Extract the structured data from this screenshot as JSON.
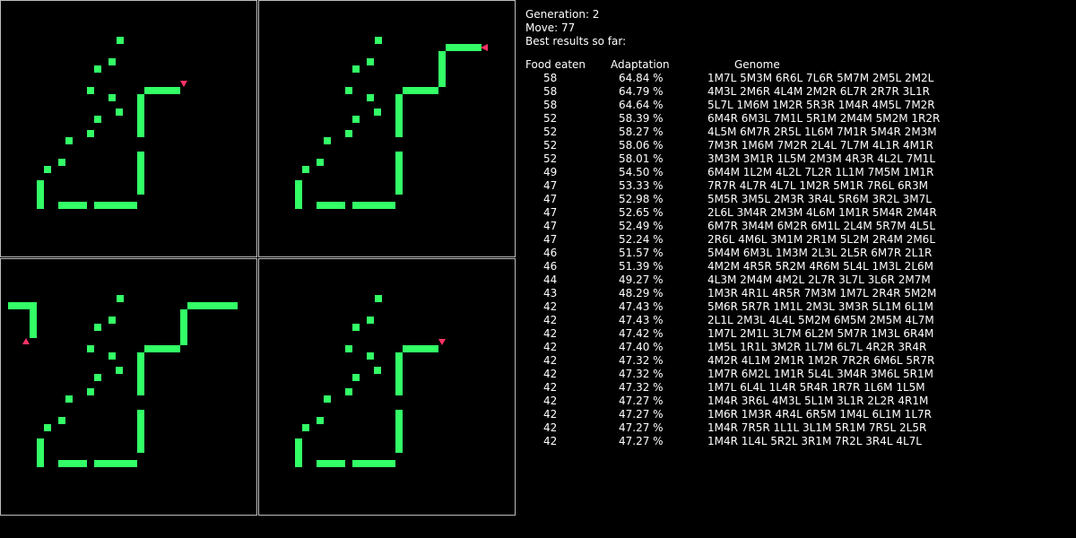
{
  "status": {
    "generation_label": "Generation: 2",
    "move_label": "Move: 77",
    "best_label": "Best results so far:"
  },
  "table": {
    "headers": [
      "Food eaten",
      "Adaptation",
      "Genome"
    ],
    "rows": [
      [
        "58",
        "64.84 %",
        "1M7L 5M3M 6R6L 7L6R 5M7M 2M5L 2M2L"
      ],
      [
        "58",
        "64.79 %",
        "4M3L 2M6R 4L4M 2M2R 6L7R 2R7R 3L1R"
      ],
      [
        "58",
        "64.64 %",
        "5L7L 1M6M 1M2R 5R3R 1M4R 4M5L 7M2R"
      ],
      [
        "52",
        "58.39 %",
        "6M4R 6M3L 7M1L 5R1M 2M4M 5M2M 1R2R"
      ],
      [
        "52",
        "58.27 %",
        "4L5M 6M7R 2R5L 1L6M 7M1R 5M4R 2M3M"
      ],
      [
        "52",
        "58.06 %",
        "7M3R 1M6M 7M2R 2L4L 7L7M 4L1R 4M1R"
      ],
      [
        "52",
        "58.01 %",
        "3M3M 3M1R 1L5M 2M3M 4R3R 4L2L 7M1L"
      ],
      [
        "49",
        "54.50 %",
        "6M4M 1L2M 4L2L 7L2R 1L1M 7M5M 1M1R"
      ],
      [
        "47",
        "53.33 %",
        "7R7R 4L7R 4L7L 1M2R 5M1R 7R6L 6R3M"
      ],
      [
        "47",
        "52.98 %",
        "5M5R 3M5L 2M3R 3R4L 5R6M 3R2L 3M7L"
      ],
      [
        "47",
        "52.65 %",
        "2L6L 3M4R 2M3M 4L6M 1M1R 5M4R 2M4R"
      ],
      [
        "47",
        "52.49 %",
        "6M7R 3M4M 6M2R 6M1L 2L4M 5R7M 4L5L"
      ],
      [
        "47",
        "52.24 %",
        "2R6L 4M6L 3M1M 2R1M 5L2M 2R4M 2M6L"
      ],
      [
        "46",
        "51.57 %",
        "5M4M 6M3L 1M3M 2L3L 2L5R 6M7R 2L1R"
      ],
      [
        "46",
        "51.39 %",
        "4M2M 4R5R 5R2M 4R6M 5L4L 1M3L 2L6M"
      ],
      [
        "44",
        "49.27 %",
        "4L3M 2M4M 4M2L 2L7R 3L7L 3L6R 2M7M"
      ],
      [
        "43",
        "48.29 %",
        "1M3R 4R1L 4R5R 7M3M 1M7L 2R4R 5M2M"
      ],
      [
        "42",
        "47.43 %",
        "5M6R 5R7R 1M1L 2M3L 3M3R 5L1M 6L1M"
      ],
      [
        "42",
        "47.43 %",
        "2L1L 2M3L 4L4L 5M2M 6M5M 2M5M 4L7M"
      ],
      [
        "42",
        "47.42 %",
        "1M7L 2M1L 3L7M 6L2M 5M7R 1M3L 6R4M"
      ],
      [
        "42",
        "47.40 %",
        "1M5L 1R1L 3M2R 1L7M 6L7L 4R2R 3R4R"
      ],
      [
        "42",
        "47.32 %",
        "4M2R 4L1M 2M1R 1M2R 7R2R 6M6L 5R7R"
      ],
      [
        "42",
        "47.32 %",
        "1M7R 6M2L 1M1R 5L4L 3M4R 3M6L 5R1M"
      ],
      [
        "42",
        "47.32 %",
        "1M7L 6L4L 1L4R 5R4R 1R7R 1L6M 1L5M"
      ],
      [
        "42",
        "47.27 %",
        "1M4R 3R6L 4M3L 5L1M 3L1R 2L2R 4R1M"
      ],
      [
        "42",
        "47.27 %",
        "1M6R 1M3R 4R4L 6R5M 1M4L 6L1M 1L7R"
      ],
      [
        "42",
        "47.27 %",
        "1M4R 7R5R 1L1L 3L1M 5R1M 7R5L 2L5R"
      ],
      [
        "42",
        "47.27 %",
        "1M4R 1L4L 5R2L 3R1M 7R2L 3R4L 4L7L"
      ]
    ]
  },
  "colors": {
    "food": "#33ff66",
    "snake": "#33ff66",
    "head": "#ff3366",
    "border": "#bdbdbd"
  },
  "panels": [
    {
      "name": "board-1",
      "extra": "p1",
      "head_dir": "down"
    },
    {
      "name": "board-2",
      "extra": "p2",
      "head_dir": "left"
    },
    {
      "name": "board-3",
      "extra": "p3",
      "head_dir": "up"
    },
    {
      "name": "board-4",
      "extra": "p4",
      "head_dir": "down"
    }
  ]
}
